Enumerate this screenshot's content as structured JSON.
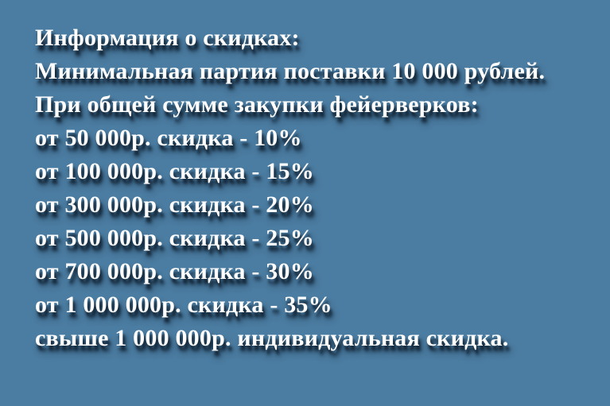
{
  "colors": {
    "background": "#4b7ca1",
    "text": "#ffffff",
    "text_shadow": "#0d1c2c"
  },
  "discount_info": {
    "title": "Информация о скидках:",
    "minimum_order": "Минимальная партия поставки 10 000 рублей.",
    "condition_intro": "При общей сумме закупки фейерверков:",
    "tiers": [
      "от 50 000р. скидка - 10%",
      "от 100 000р. скидка - 15%",
      "от 300 000р. скидка - 20%",
      "от 500 000р. скидка - 25%",
      "от 700 000р. скидка - 30%",
      "от 1 000 000р. скидка - 35%"
    ],
    "over_max": "свыше 1 000 000р. индивидуальная скидка."
  }
}
